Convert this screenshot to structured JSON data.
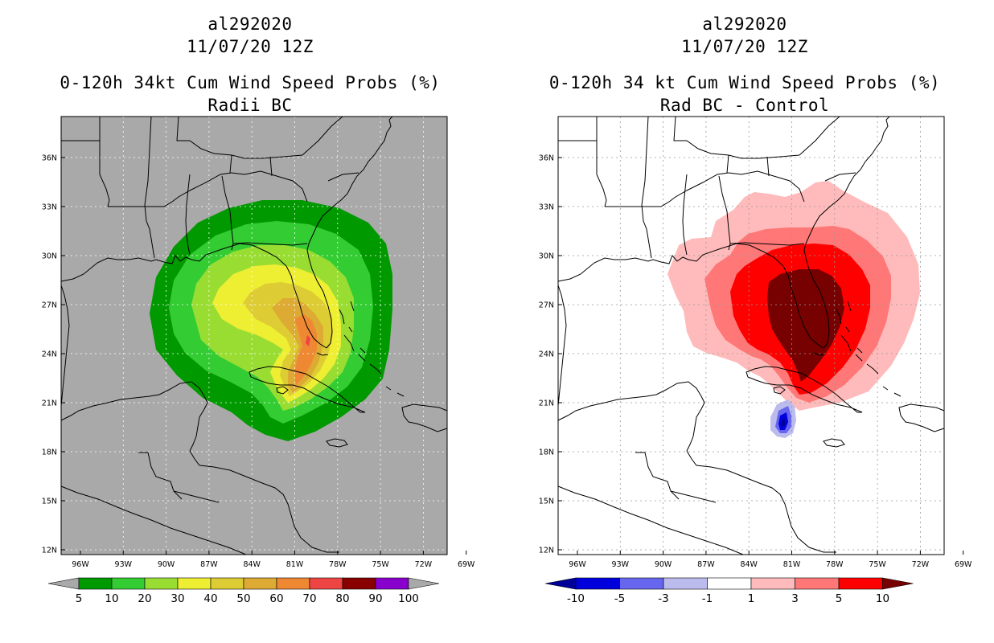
{
  "panels": [
    {
      "storm_id": "al292020",
      "cycle": "11/07/20 12Z",
      "product": "0-120h 34kt Cum Wind Speed Probs (%)",
      "subtitle": "Radii BC",
      "background_color": "#a9a9a9",
      "colorbar": {
        "labels": [
          "5",
          "10",
          "20",
          "30",
          "40",
          "50",
          "60",
          "70",
          "80",
          "90",
          "100"
        ],
        "colors": [
          "#009900",
          "#33cc33",
          "#99dd33",
          "#eeee33",
          "#ddcc33",
          "#ddaa33",
          "#ee8833",
          "#ee4444",
          "#880000",
          "#8800cc"
        ],
        "below_color": "#a9a9a9",
        "above_color": "#a9a9a9"
      }
    },
    {
      "storm_id": "al292020",
      "cycle": "11/07/20 12Z",
      "product": "0-120h 34 kt Cum Wind Speed Probs (%)",
      "subtitle": "Rad BC - Control",
      "background_color": "#ffffff",
      "colorbar": {
        "labels": [
          "-10",
          "-5",
          "-3",
          "-1",
          "1",
          "3",
          "5",
          "10"
        ],
        "colors": [
          "#0000dd",
          "#6666ee",
          "#bbbbee",
          "#ffffff",
          "#ffbbbb",
          "#ff7777",
          "#ff0000"
        ],
        "below_color": "#000099",
        "above_color": "#770000"
      }
    }
  ],
  "map": {
    "lat_labels": [
      "36N",
      "33N",
      "30N",
      "27N",
      "24N",
      "21N",
      "18N",
      "15N",
      "12N"
    ],
    "lon_labels": [
      "96W",
      "93W",
      "90W",
      "87W",
      "84W",
      "81W",
      "78W",
      "75W",
      "72W",
      "69W"
    ]
  }
}
